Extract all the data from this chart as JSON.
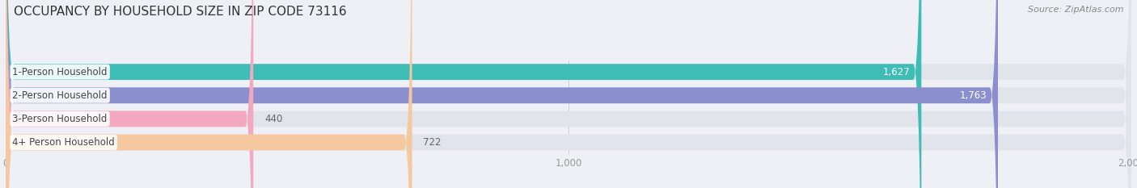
{
  "title": "OCCUPANCY BY HOUSEHOLD SIZE IN ZIP CODE 73116",
  "source": "Source: ZipAtlas.com",
  "categories": [
    "1-Person Household",
    "2-Person Household",
    "3-Person Household",
    "4+ Person Household"
  ],
  "values": [
    1627,
    1763,
    440,
    722
  ],
  "bar_colors": [
    "#3dbdb5",
    "#8b8fce",
    "#f4a8c0",
    "#f5c8a0"
  ],
  "xlim": [
    0,
    2000
  ],
  "xticks": [
    0,
    1000,
    2000
  ],
  "xtick_labels": [
    "0",
    "1,000",
    "2,000"
  ],
  "background_color": "#eef0f5",
  "bar_bg_color": "#e2e4ec",
  "title_fontsize": 11,
  "source_fontsize": 8,
  "label_fontsize": 8.5,
  "value_fontsize": 8.5,
  "bar_height": 0.68,
  "figsize": [
    14.06,
    2.33
  ]
}
